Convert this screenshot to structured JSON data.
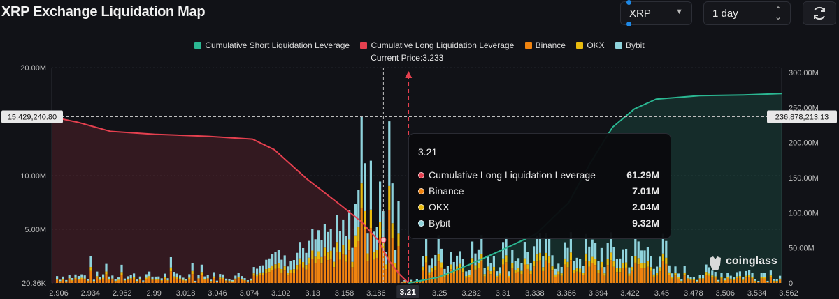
{
  "title": "XRP Exchange Liquidation Map",
  "controls": {
    "coin": "XRP",
    "range": "1 day",
    "refresh_icon": "refresh-icon"
  },
  "brand": "coinglass",
  "colors": {
    "short": "#2bb792",
    "long": "#e5404f",
    "binance": "#f0830f",
    "okx": "#e9bb0f",
    "bybit": "#8fd3dc",
    "background": "#111217"
  },
  "chart_data": {
    "type": "bar",
    "legend": [
      "Cumulative Short Liquidation Leverage",
      "Cumulative Long Liquidation Leverage",
      "Binance",
      "OKX",
      "Bybit"
    ],
    "legend_position": "top-center",
    "current_price_label": "Current Price:3.233",
    "current_price": 3.233,
    "highlight_x": "3.21",
    "left_axis": {
      "ticks": [
        "20.00M",
        "10.00M",
        "5.00M",
        "20.36K"
      ],
      "marker": "15,429,240.80"
    },
    "right_axis": {
      "ticks": [
        "300.00M",
        "250.00M",
        "200.00M",
        "150.00M",
        "100.00M",
        "50.00M",
        "0"
      ],
      "range": [
        0,
        300000000
      ],
      "marker": "236,878,213.13"
    },
    "x_ticks": [
      "2.906",
      "2.934",
      "2.962",
      "2.99",
      "3.018",
      "3.046",
      "3.074",
      "3.102",
      "3.13",
      "3.158",
      "3.186",
      "3.21",
      "3.25",
      "3.282",
      "3.31",
      "3.338",
      "3.366",
      "3.394",
      "3.422",
      "3.45",
      "3.478",
      "3.506",
      "3.534",
      "3.562"
    ],
    "x_range": [
      2.906,
      3.575
    ],
    "long_series": {
      "name": "Cumulative Long Liquidation Leverage",
      "x": [
        2.906,
        2.93,
        2.96,
        3.0,
        3.05,
        3.09,
        3.11,
        3.14,
        3.17,
        3.19,
        3.205,
        3.215,
        3.225,
        3.233
      ],
      "y": [
        236878213,
        229000000,
        216000000,
        212000000,
        209000000,
        205000000,
        190000000,
        148000000,
        112000000,
        87000000,
        61290000,
        32000000,
        12000000,
        0
      ]
    },
    "short_series": {
      "name": "Cumulative Short Liquidation Leverage",
      "x": [
        3.233,
        3.26,
        3.29,
        3.32,
        3.35,
        3.38,
        3.4,
        3.42,
        3.44,
        3.46,
        3.5,
        3.54,
        3.575
      ],
      "y": [
        0,
        8000000,
        27000000,
        48000000,
        70000000,
        115000000,
        172000000,
        222000000,
        248000000,
        262000000,
        267000000,
        268000000,
        270000000
      ]
    },
    "tooltip": {
      "title": "3.21",
      "rows": [
        {
          "label": "Cumulative Long Liquidation Leverage",
          "value": "61.29M",
          "color": "#e5404f"
        },
        {
          "label": "Binance",
          "value": "7.01M",
          "color": "#f0830f"
        },
        {
          "label": "OKX",
          "value": "2.04M",
          "color": "#e9bb0f"
        },
        {
          "label": "Bybit",
          "value": "9.32M",
          "color": "#8fd3dc"
        }
      ]
    }
  }
}
